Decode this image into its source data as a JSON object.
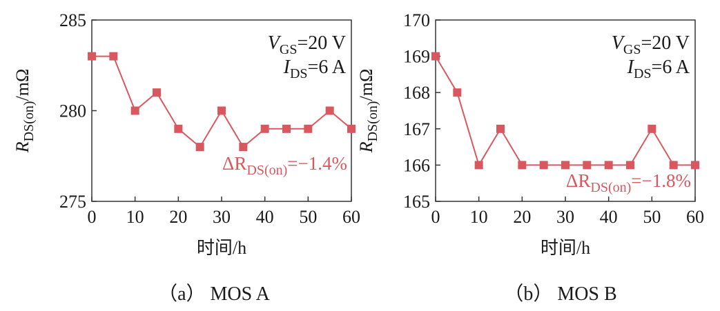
{
  "figure": {
    "accent_color": "#d9585f",
    "x_axis_label": "时间/h",
    "y_axis_label_main": "R",
    "y_axis_label_sub": "DS(on)",
    "y_axis_label_unit": "/mΩ"
  },
  "chart_data": [
    {
      "type": "line",
      "caption": "（a） MOS A",
      "x": [
        0,
        5,
        10,
        15,
        20,
        25,
        30,
        35,
        40,
        45,
        50,
        55,
        60
      ],
      "series": [
        {
          "values": [
            283,
            283,
            280,
            281,
            279,
            278,
            280,
            278,
            279,
            279,
            279,
            280,
            279
          ]
        }
      ],
      "xlim": [
        0,
        60
      ],
      "ylim": [
        275,
        285
      ],
      "xticks": [
        "0",
        "10",
        "20",
        "30",
        "40",
        "50",
        "60"
      ],
      "yticks": [
        "275",
        "280",
        "285"
      ],
      "xlabel": "时间/h",
      "ylabel": "RDS(on)/mΩ",
      "conditions": {
        "vgs_sym": "V",
        "vgs_sub": "GS",
        "vgs_val": "=20 V",
        "ids_sym": "I",
        "ids_sub": "DS",
        "ids_val": "=6 A"
      },
      "delta": {
        "prefix": "ΔR",
        "sub": "DS(on)",
        "value": "=−1.4%"
      },
      "marker": "square",
      "grid": false
    },
    {
      "type": "line",
      "caption": "（b） MOS B",
      "x": [
        0,
        5,
        10,
        15,
        20,
        25,
        30,
        35,
        40,
        45,
        50,
        55,
        60
      ],
      "series": [
        {
          "values": [
            169,
            168,
            166,
            167,
            166,
            166,
            166,
            166,
            166,
            166,
            167,
            166,
            166
          ]
        }
      ],
      "xlim": [
        0,
        60
      ],
      "ylim": [
        165,
        170
      ],
      "xticks": [
        "0",
        "10",
        "20",
        "30",
        "40",
        "50",
        "60"
      ],
      "yticks": [
        "165",
        "166",
        "167",
        "168",
        "169",
        "170"
      ],
      "xlabel": "时间/h",
      "ylabel": "RDS(on)/mΩ",
      "conditions": {
        "vgs_sym": "V",
        "vgs_sub": "GS",
        "vgs_val": "=20 V",
        "ids_sym": "I",
        "ids_sub": "DS",
        "ids_val": "=6 A"
      },
      "delta": {
        "prefix": "ΔR",
        "sub": "DS(on)",
        "value": "=−1.8%"
      },
      "marker": "square",
      "grid": false
    }
  ]
}
